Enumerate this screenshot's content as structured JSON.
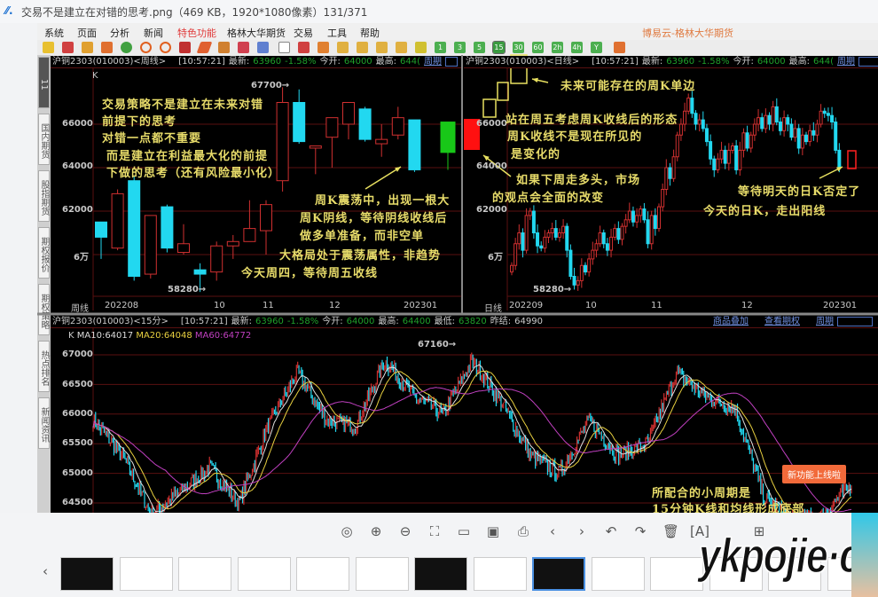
{
  "window": {
    "title": "交易不是建立在对错的思考.png（469 KB，1920*1080像素）131/371"
  },
  "menu": {
    "items": [
      "系统",
      "页面",
      "分析",
      "新闻",
      "特色功能",
      "格林大华期货",
      "交易",
      "工具",
      "帮助"
    ],
    "active": "特色功能",
    "brand": "博易云-格林大华期货"
  },
  "toolbar": {
    "period_buttons": [
      "1",
      "3",
      "5",
      "15",
      "30",
      "60",
      "2h",
      "4h",
      "Y"
    ],
    "active_period": "15"
  },
  "sidebar": {
    "tabs": [
      "国内期货",
      "股指期货",
      "期权报价",
      "期权策略",
      "热点排名",
      "新闻资讯"
    ]
  },
  "weekly": {
    "header": {
      "symbol": "沪铜2303(010003)<周线>",
      "time": "[10:57:21]",
      "latest_label": "最新:",
      "latest": "63960",
      "change": "-1.58%",
      "open_label": "今开:",
      "open": "64000",
      "high_label": "最高:",
      "high": "644(",
      "link": "周期"
    },
    "k_label": "K",
    "y_ticks": [
      "66000",
      "64000",
      "62000",
      "6万"
    ],
    "x_ticks": [
      "周线",
      "202208",
      "10",
      "11",
      "12",
      "202301"
    ],
    "max_label": "67700→",
    "min_label": "58280→",
    "candles": [
      [
        61500,
        60800,
        61500,
        59800
      ],
      [
        60300,
        62800,
        63000,
        60200
      ],
      [
        63400,
        59000,
        63600,
        58800
      ],
      [
        59100,
        61800,
        61800,
        58900
      ],
      [
        62200,
        60300,
        62300,
        60100
      ],
      [
        60100,
        60500,
        61400,
        60000
      ],
      [
        59300,
        59100,
        59600,
        58280
      ],
      [
        59200,
        60400,
        60600,
        58800
      ],
      [
        60400,
        60600,
        60900,
        59800
      ],
      [
        60600,
        61200,
        62500,
        60600
      ],
      [
        61100,
        62300,
        62500,
        60000
      ],
      [
        63400,
        67000,
        67700,
        62900
      ],
      [
        67000,
        65200,
        67600,
        65100
      ],
      [
        64900,
        65000,
        65000,
        63700
      ],
      [
        65400,
        66300,
        66300,
        64000
      ],
      [
        66000,
        67000,
        67000,
        65300
      ],
      [
        66700,
        65300,
        66800,
        65200
      ],
      [
        65100,
        65300,
        66000,
        64500
      ],
      [
        65500,
        66300,
        66800,
        65300
      ],
      [
        66200,
        63900,
        66200,
        63800
      ],
      [
        66100,
        64700,
        66100,
        63900
      ]
    ],
    "notes": [
      "交易策略不是建立在未来对错",
      "前提下的思考",
      "对错一点都不重要",
      "而是建立在利益最大化的前提",
      "下做的思考（还有风险最小化）",
      "周K震荡中，出现一根大",
      "周K阴线，等待阴线收线后",
      "做多单准备，而非空单",
      "大格局处于震荡属性，非趋势",
      "今天周四，等待周五收线"
    ]
  },
  "daily": {
    "header": {
      "symbol": "沪铜2303(010003)<日线>",
      "time": "[10:57:21]",
      "latest_label": "最新:",
      "latest": "63960",
      "change": "-1.58%",
      "open_label": "今开:",
      "open": "64000",
      "high_label": "最高:",
      "high": "644(",
      "link": "周期"
    },
    "y_ticks": [
      "66000",
      "64000",
      "62000",
      "6万"
    ],
    "x_ticks": [
      "日线",
      "202209",
      "10",
      "11",
      "12",
      "202301"
    ],
    "min_label": "58280→",
    "closes": [
      59500,
      60500,
      61000,
      60200,
      61800,
      62000,
      61000,
      60400,
      60300,
      60800,
      61000,
      61200,
      60800,
      61000,
      61300,
      60200,
      59000,
      58600,
      58800,
      59500,
      59200,
      59800,
      60200,
      60500,
      61000,
      60500,
      60200,
      60800,
      61200,
      60700,
      61300,
      61600,
      62000,
      61500,
      61800,
      62100,
      61600,
      60500,
      61800,
      61200,
      62200,
      63000,
      64000,
      63500,
      64500,
      65500,
      66000,
      66600,
      67200,
      66500,
      66000,
      66200,
      65800,
      65200,
      64400,
      63900,
      64400,
      64800,
      64200,
      64800,
      65000,
      63900,
      64800,
      65600,
      64900,
      65500,
      66000,
      66300,
      65800,
      66400,
      66000,
      66800,
      66100,
      65700,
      66300,
      66000,
      65400,
      65800,
      64900,
      65500,
      65200,
      65700,
      65500,
      66000,
      66600,
      66500,
      66400,
      66100,
      64800,
      64000
    ],
    "notes": [
      "未来可能存在的周K单边",
      "站在周五考虑周K收线后的形态",
      "周K收线不是现在所见的",
      "是变化的",
      "如果下周走多头，市场",
      "的观点会全面的改变",
      "等待明天的日K否定了",
      "今天的日K，走出阳线"
    ]
  },
  "min15": {
    "header": {
      "symbol": "沪铜2303(010003)<15分>",
      "time": "[10:57:21]",
      "latest_label": "最新:",
      "latest": "63960",
      "change": "-1.58%",
      "open_label": "今开:",
      "open": "64000",
      "high_label": "最高:",
      "high": "64400",
      "low_label": "最低:",
      "low": "63820",
      "prev_label": "昨结:",
      "prev": "64990",
      "links": [
        "商品叠加",
        "查看期权",
        "周期"
      ]
    },
    "k_label": "K",
    "ma10": "MA10:64017",
    "ma20": "MA20:64048",
    "ma60": "MA60:64772",
    "y_ticks": [
      "67000",
      "66500",
      "66000",
      "65500",
      "65000",
      "64500"
    ],
    "max_label": "67160→",
    "anchors": [
      65900,
      65300,
      64300,
      64700,
      65100,
      64500,
      65800,
      66700,
      65900,
      65800,
      66900,
      66300,
      66000,
      66900,
      66200,
      65300,
      65000,
      65900,
      65300,
      65500,
      66700,
      66300,
      66100,
      64600,
      64200,
      64300,
      64800
    ],
    "notes": [
      "所配合的小周期是",
      "15分钟K线和均线形成底部"
    ],
    "new_feature": "新功能上线啦"
  },
  "colors": {
    "up": "#d03030",
    "down": "#22d8f0",
    "ma10": "#e0e0e0",
    "ma20": "#e8d040",
    "ma60": "#c040c0",
    "note": "#e8dc6a",
    "grid": "#5a1010"
  },
  "viewer": {
    "icons": [
      "mouse-icon",
      "zoom-in-icon",
      "zoom-out-icon",
      "fit-screen-icon",
      "open-folder-icon",
      "slideshow-icon",
      "print-icon",
      "previous-icon",
      "next-icon",
      "rotate-left-icon",
      "rotate-right-icon",
      "delete-icon",
      "ocr-icon",
      "grid-view-icon"
    ]
  },
  "watermark": "ykpojie·com"
}
